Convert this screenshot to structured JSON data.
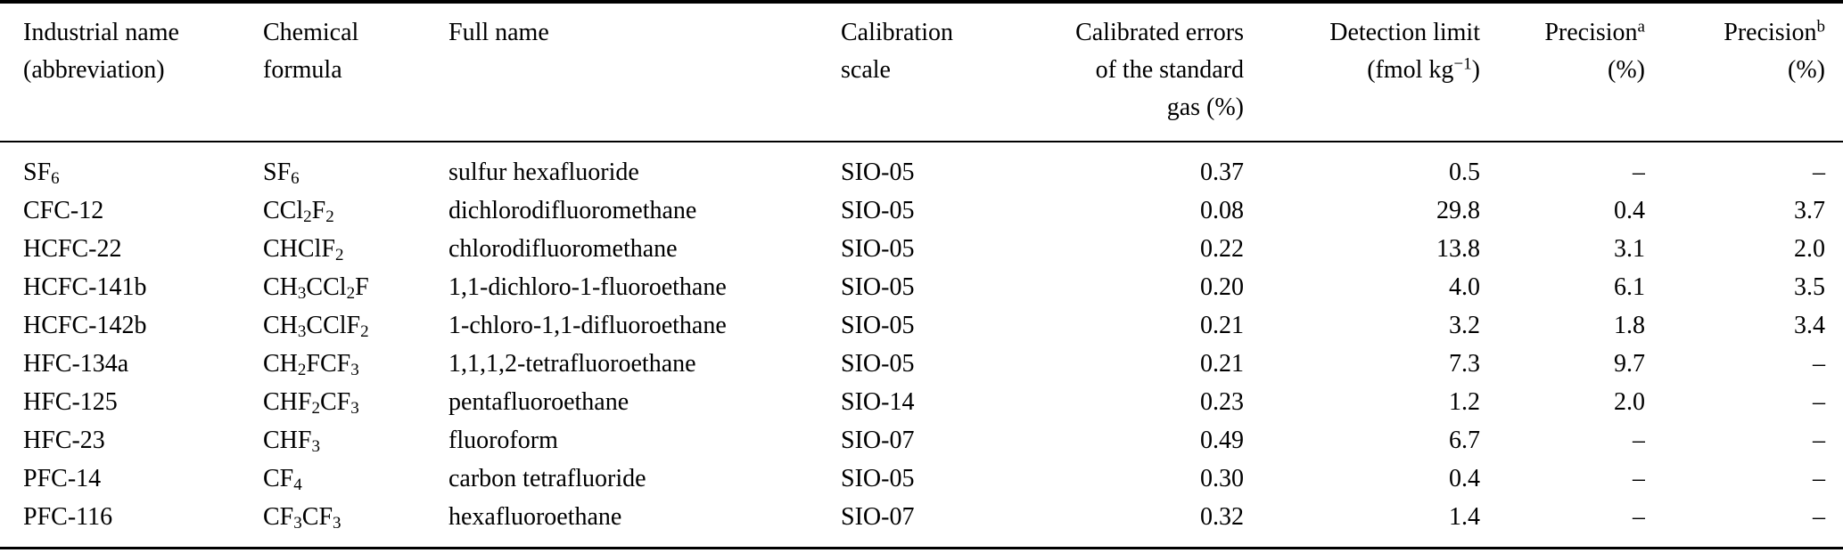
{
  "page": {
    "background_color": "#ffffff",
    "text_color": "#000000",
    "rule_color": "#000000"
  },
  "table": {
    "header": {
      "industrial": "Industrial name\n(abbreviation)",
      "formula": "Chemical\nformula",
      "full_name": "Full name",
      "calibration": "Calibration\nscale",
      "calibrated_errors": "Calibrated errors\nof the standard\ngas (%)",
      "detection_limit": "Detection limit\n(fmol kg^{−1})",
      "precision_a": "Precision^a\n(%)",
      "precision_b": "Precision^b\n(%)"
    },
    "rows": [
      {
        "industrial": "SF_6",
        "formula": "SF_6",
        "full_name": "sulfur hexafluoride",
        "calibration": "SIO-05",
        "calibrated_errors": "0.37",
        "detection_limit": "0.5",
        "precision_a": "–",
        "precision_b": "–"
      },
      {
        "industrial": "CFC-12",
        "formula": "CCl_2F_2",
        "full_name": "dichlorodifluoromethane",
        "calibration": "SIO-05",
        "calibrated_errors": "0.08",
        "detection_limit": "29.8",
        "precision_a": "0.4",
        "precision_b": "3.7"
      },
      {
        "industrial": "HCFC-22",
        "formula": "CHClF_2",
        "full_name": "chlorodifluoromethane",
        "calibration": "SIO-05",
        "calibrated_errors": "0.22",
        "detection_limit": "13.8",
        "precision_a": "3.1",
        "precision_b": "2.0"
      },
      {
        "industrial": "HCFC-141b",
        "formula": "CH_3CCl_2F",
        "full_name": "1,1-dichloro-1-fluoroethane",
        "calibration": "SIO-05",
        "calibrated_errors": "0.20",
        "detection_limit": "4.0",
        "precision_a": "6.1",
        "precision_b": "3.5"
      },
      {
        "industrial": "HCFC-142b",
        "formula": "CH_3CClF_2",
        "full_name": "1-chloro-1,1-difluoroethane",
        "calibration": "SIO-05",
        "calibrated_errors": "0.21",
        "detection_limit": "3.2",
        "precision_a": "1.8",
        "precision_b": "3.4"
      },
      {
        "industrial": "HFC-134a",
        "formula": "CH_2FCF_3",
        "full_name": "1,1,1,2-tetrafluoroethane",
        "calibration": "SIO-05",
        "calibrated_errors": "0.21",
        "detection_limit": "7.3",
        "precision_a": "9.7",
        "precision_b": "–"
      },
      {
        "industrial": "HFC-125",
        "formula": "CHF_2CF_3",
        "full_name": "pentafluoroethane",
        "calibration": "SIO-14",
        "calibrated_errors": "0.23",
        "detection_limit": "1.2",
        "precision_a": "2.0",
        "precision_b": "–"
      },
      {
        "industrial": "HFC-23",
        "formula": "CHF_3",
        "full_name": "fluoroform",
        "calibration": "SIO-07",
        "calibrated_errors": "0.49",
        "detection_limit": "6.7",
        "precision_a": "–",
        "precision_b": "–"
      },
      {
        "industrial": "PFC-14",
        "formula": "CF_4",
        "full_name": "carbon tetrafluoride",
        "calibration": "SIO-05",
        "calibrated_errors": "0.30",
        "detection_limit": "0.4",
        "precision_a": "–",
        "precision_b": "–"
      },
      {
        "industrial": "PFC-116",
        "formula": "CF_3CF_3",
        "full_name": "hexafluoroethane",
        "calibration": "SIO-07",
        "calibrated_errors": "0.32",
        "detection_limit": "1.4",
        "precision_a": "–",
        "precision_b": "–"
      }
    ]
  }
}
